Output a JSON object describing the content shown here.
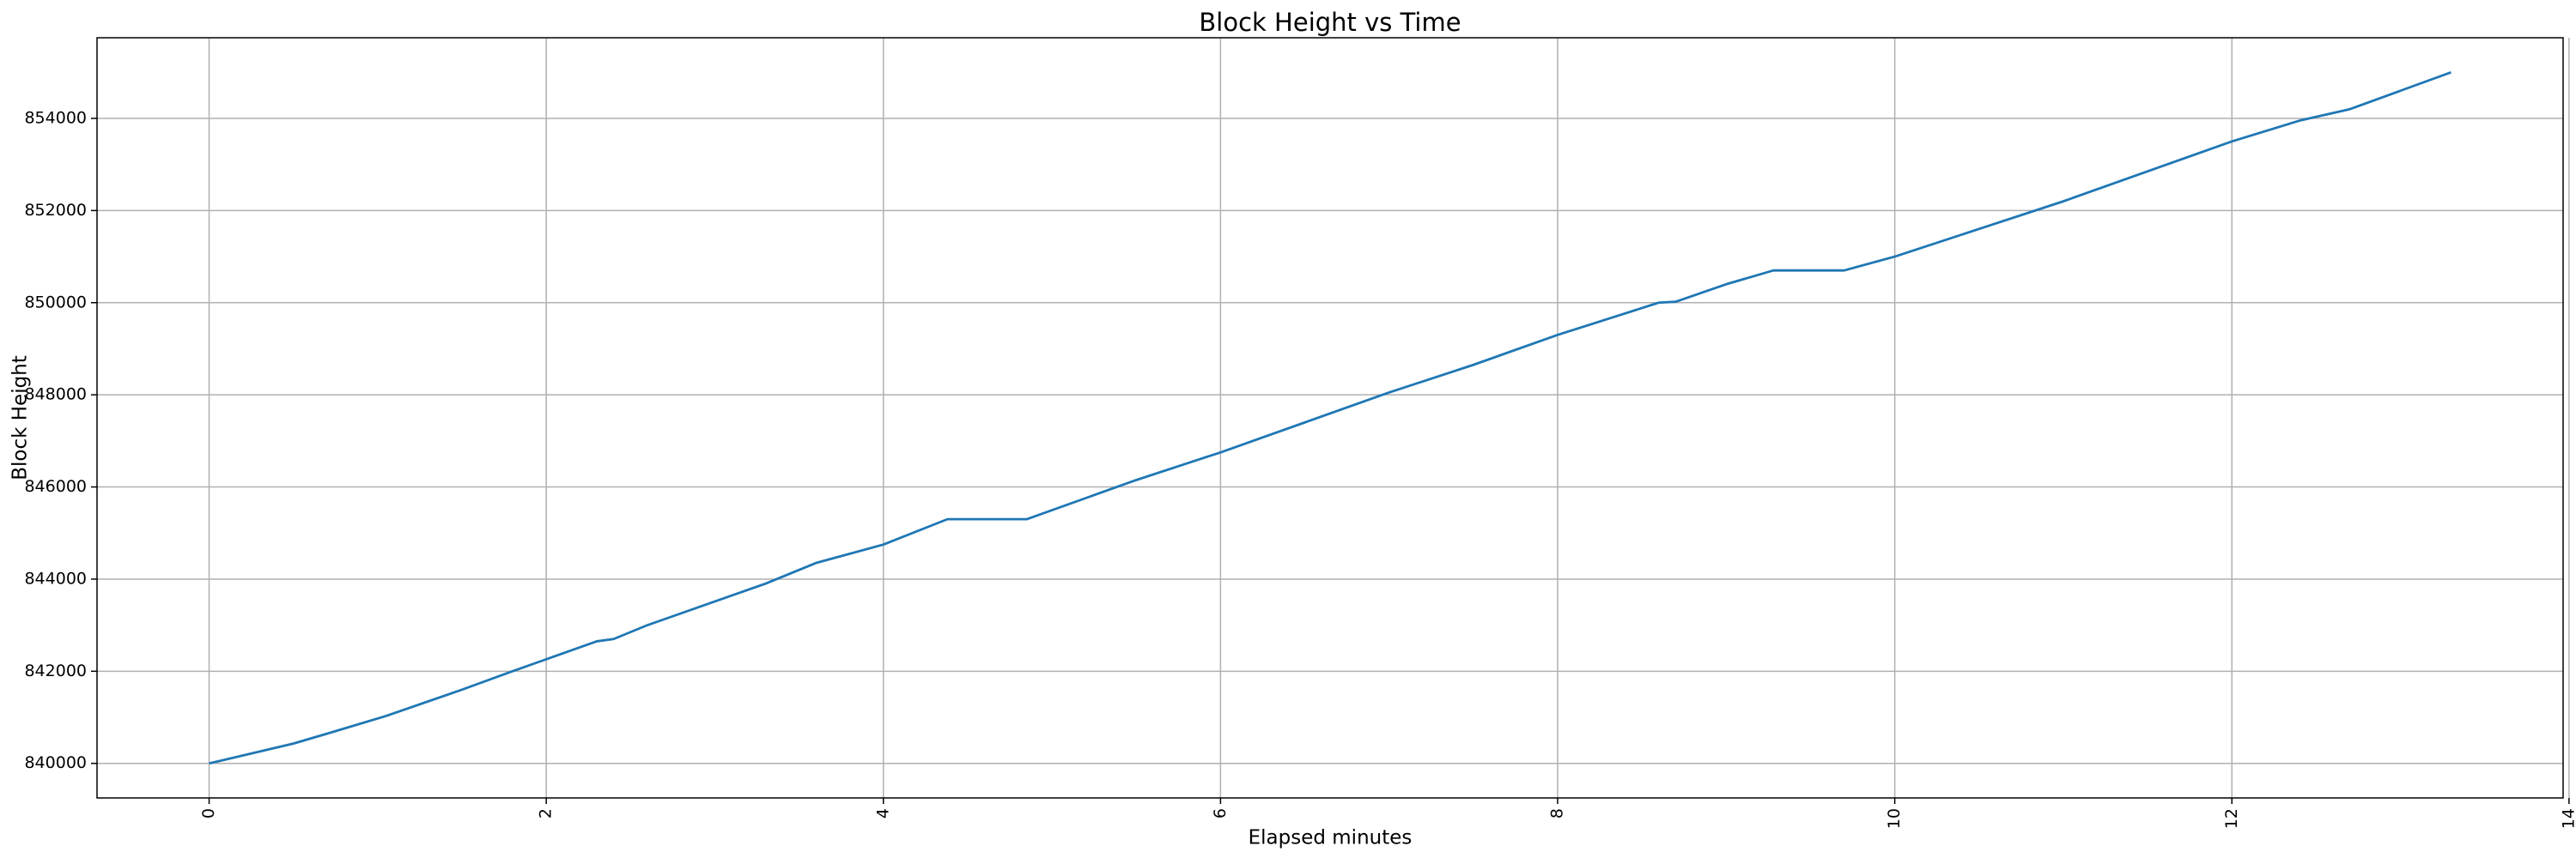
{
  "chart_data": {
    "type": "line",
    "title": "Block Height vs Time",
    "xlabel": "Elapsed minutes",
    "ylabel": "Block Height",
    "x": [
      0,
      0.5,
      0.75,
      1.05,
      1.5,
      1.8,
      2.3,
      2.4,
      2.6,
      3.3,
      3.6,
      4.0,
      4.38,
      4.85,
      5.5,
      6.0,
      6.5,
      7.0,
      7.5,
      8.0,
      8.3,
      8.6,
      8.7,
      9.0,
      9.28,
      9.7,
      10.0,
      10.5,
      11.0,
      11.5,
      12.0,
      12.4,
      12.7,
      13.3
    ],
    "series": [
      {
        "color": "#1f77b4",
        "values": [
          840000,
          840430,
          840700,
          841030,
          841600,
          842000,
          842650,
          842700,
          843000,
          843900,
          844350,
          844750,
          845300,
          845300,
          846150,
          846750,
          847400,
          848050,
          848650,
          849300,
          849650,
          850000,
          850020,
          850400,
          850700,
          850700,
          851000,
          851600,
          852200,
          852850,
          853500,
          853950,
          854200,
          855000
        ]
      }
    ],
    "xlim": [
      -0.665,
      13.965
    ],
    "ylim": [
      839250,
      855750
    ],
    "xticks": [
      0,
      2,
      4,
      6,
      8,
      10,
      12,
      14
    ],
    "yticks": [
      840000,
      842000,
      844000,
      846000,
      848000,
      850000,
      852000,
      854000
    ],
    "grid": true
  }
}
